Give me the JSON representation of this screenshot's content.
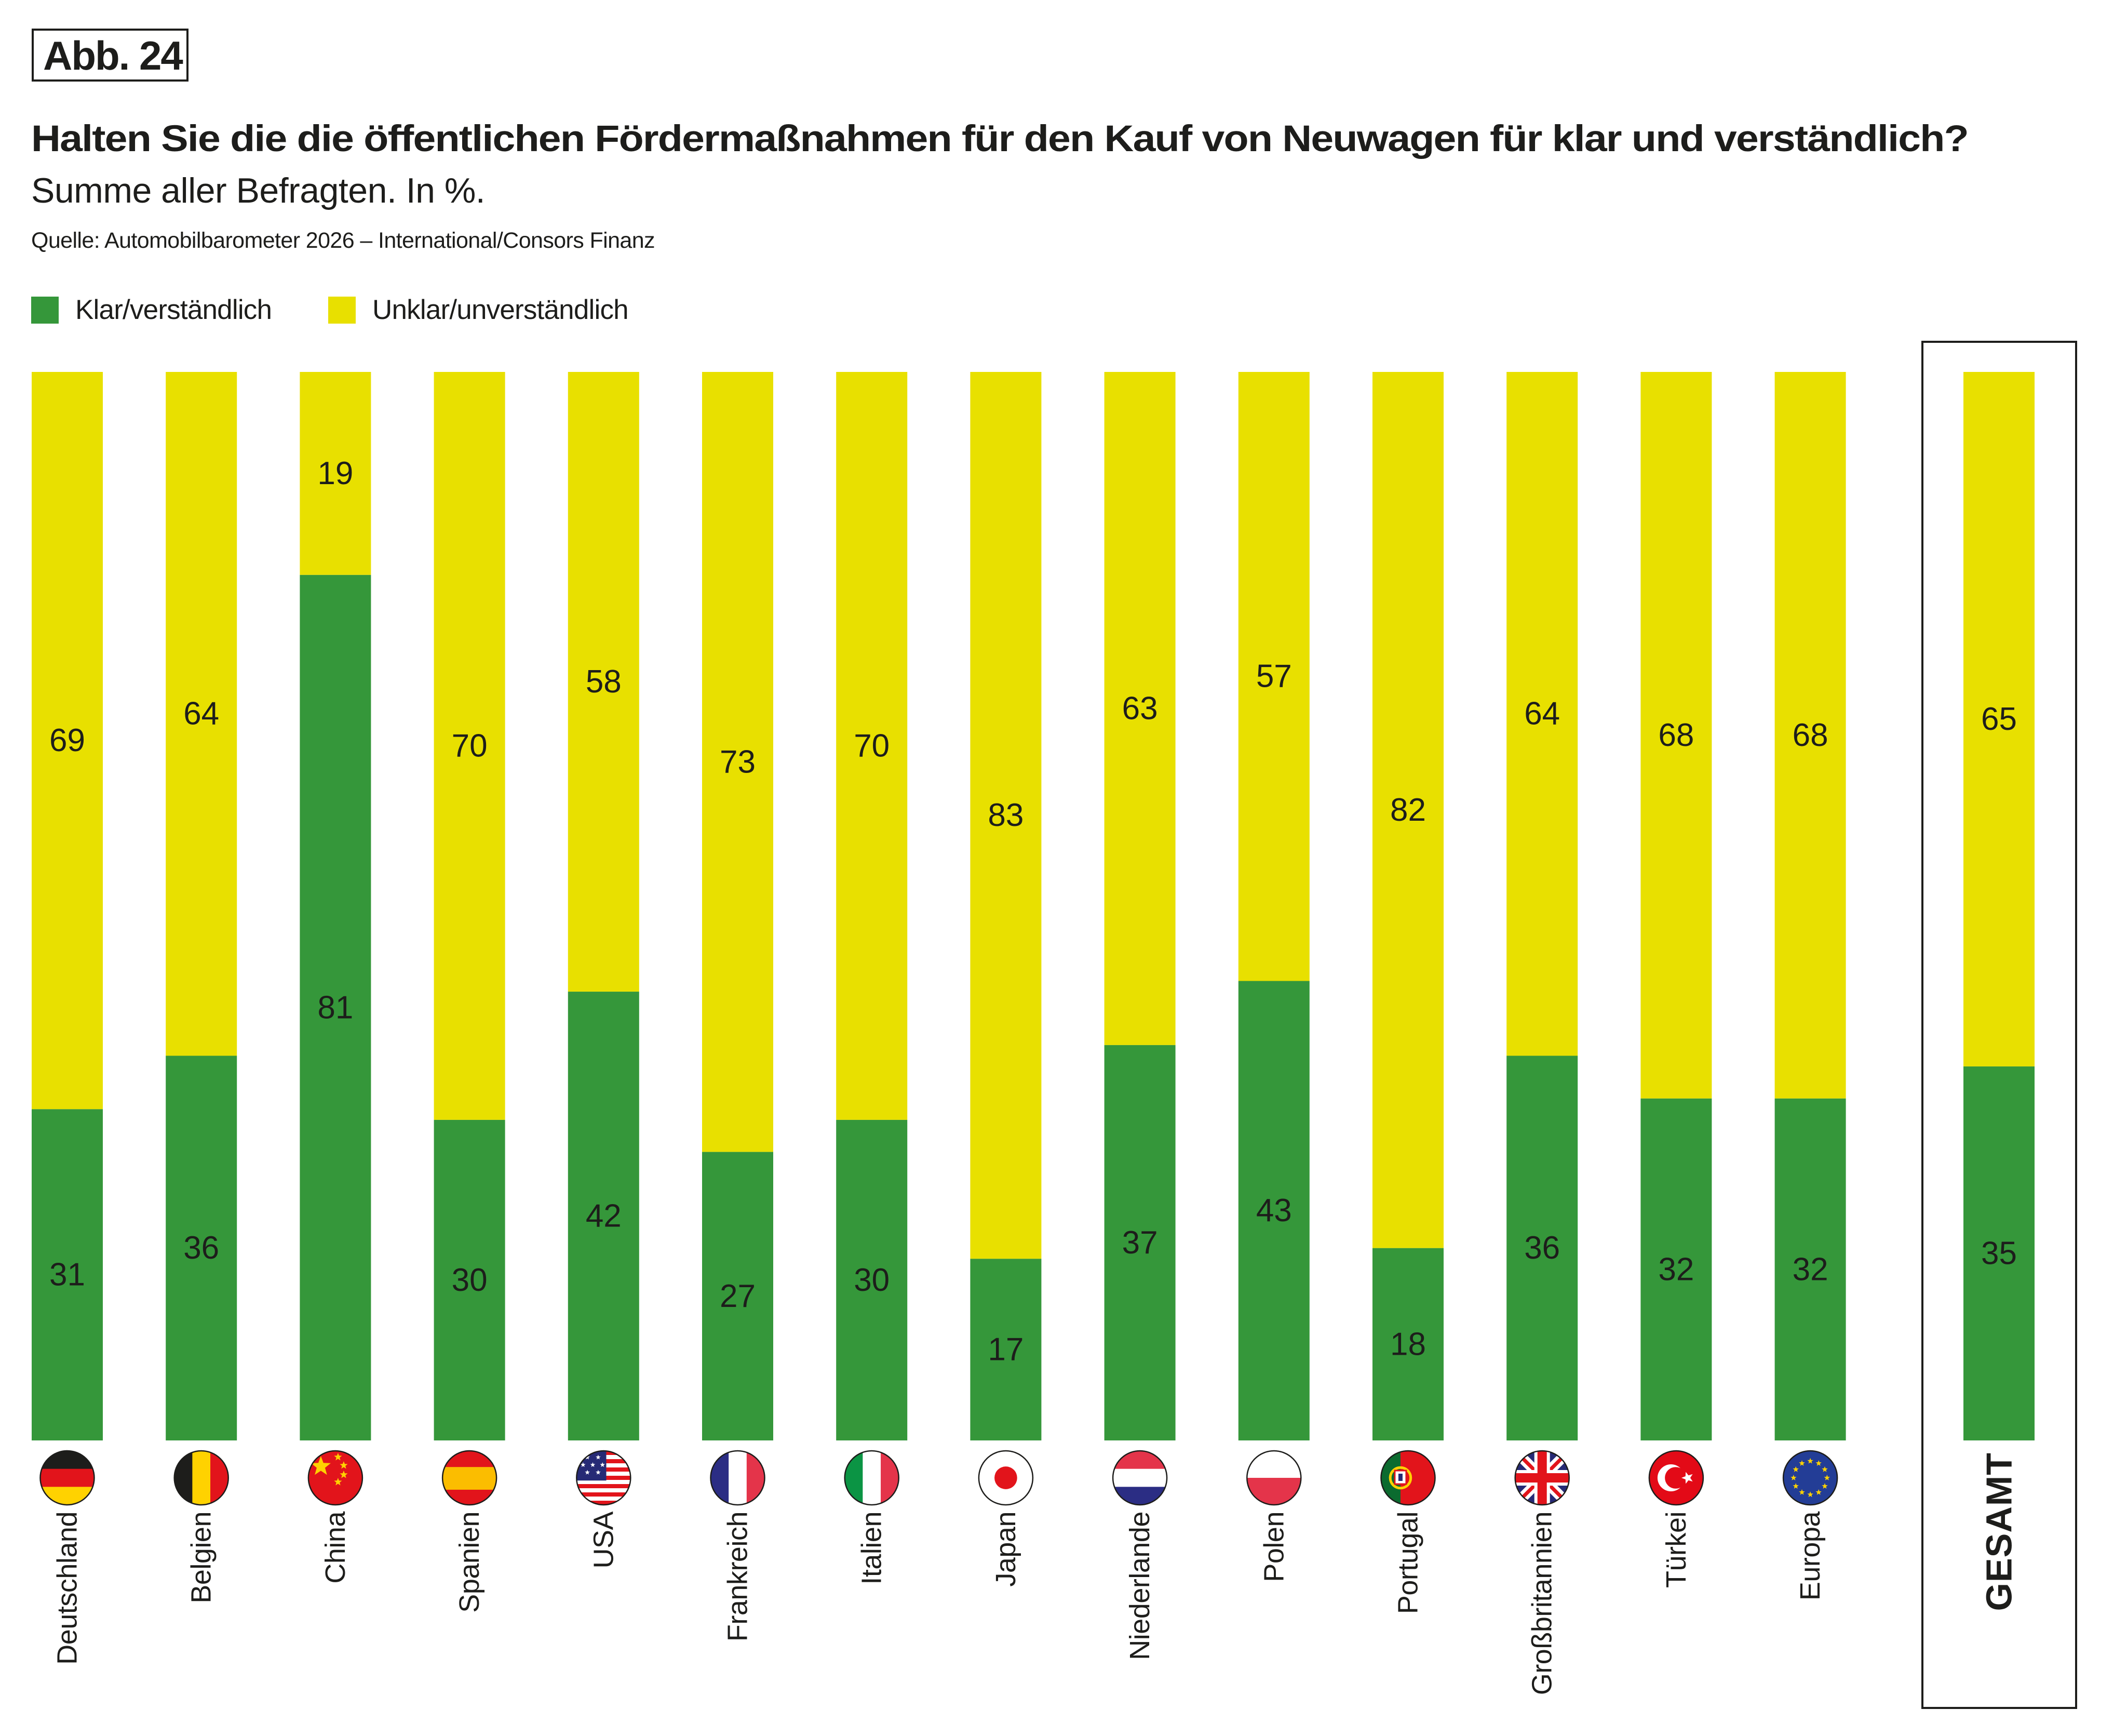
{
  "figure_badge": "Abb. 24",
  "title": "Halten Sie die die öffentlichen Fördermaßnahmen für den Kauf von Neuwagen für klar und verständlich?",
  "subtitle": "Summe aller Befragten. In %.",
  "source": "Quelle: Automobilbarometer 2026 – International/Consors Finanz",
  "colors": {
    "clear": "#35973A",
    "unclear": "#E8E000",
    "text": "#1D1D1B"
  },
  "legend": [
    {
      "label": "Klar/verständlich",
      "color": "#35973A"
    },
    {
      "label": "Unklar/unverständlich",
      "color": "#E8E000"
    }
  ],
  "chart_data": {
    "type": "bar",
    "stacked": true,
    "orientation": "vertical",
    "title": "Halten Sie die die öffentlichen Fördermaßnahmen für den Kauf von Neuwagen für klar und verständlich?",
    "subtitle": "Summe aller Befragten. In %.",
    "xlabel": "",
    "ylabel": "",
    "ylim": [
      0,
      100
    ],
    "grid": false,
    "legend_position": "top-left",
    "categories": [
      "Deutschland",
      "Belgien",
      "China",
      "Spanien",
      "USA",
      "Frankreich",
      "Italien",
      "Japan",
      "Niederlande",
      "Polen",
      "Portugal",
      "Großbritannien",
      "Türkei",
      "Europa",
      "GESAMT"
    ],
    "flags": [
      "germany-flag-icon",
      "belgium-flag-icon",
      "china-flag-icon",
      "spain-flag-icon",
      "usa-flag-icon",
      "france-flag-icon",
      "italy-flag-icon",
      "japan-flag-icon",
      "netherlands-flag-icon",
      "poland-flag-icon",
      "portugal-flag-icon",
      "uk-flag-icon",
      "turkey-flag-icon",
      "eu-flag-icon",
      ""
    ],
    "highlighted_category": "GESAMT",
    "series": [
      {
        "name": "Klar/verständlich",
        "color": "#35973A",
        "values": [
          31,
          36,
          81,
          30,
          42,
          27,
          30,
          17,
          37,
          43,
          18,
          36,
          32,
          32,
          35
        ]
      },
      {
        "name": "Unklar/unverständlich",
        "color": "#E8E000",
        "values": [
          69,
          64,
          19,
          70,
          58,
          73,
          70,
          83,
          63,
          57,
          82,
          64,
          68,
          68,
          65
        ]
      }
    ]
  }
}
